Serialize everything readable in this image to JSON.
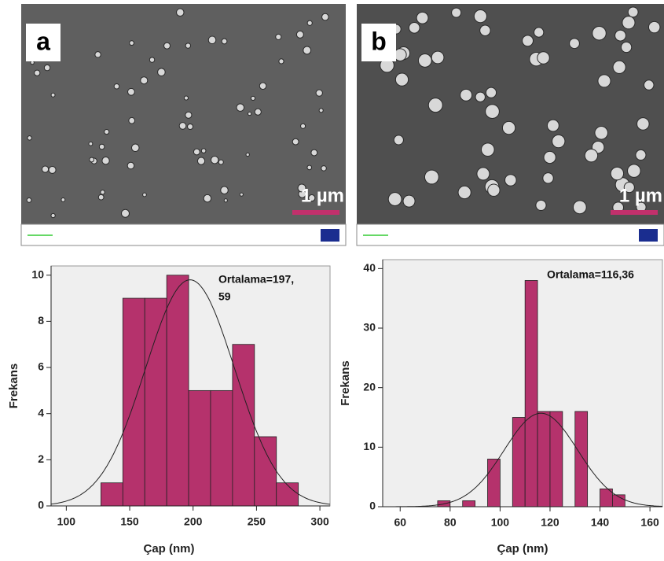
{
  "panels": [
    {
      "label": "a",
      "scale_bar": "1 µm"
    },
    {
      "label": "b",
      "scale_bar": "1 µm"
    }
  ],
  "chart_data": [
    {
      "type": "histogram",
      "bins": [
        127.3,
        144.6,
        161.9,
        179.2,
        196.5,
        213.8,
        231.1,
        248.4,
        265.7,
        283.0
      ],
      "values": [
        1,
        9,
        9,
        10,
        5,
        5,
        7,
        3,
        1
      ],
      "color": "#b5326c",
      "xlim": [
        88,
        308
      ],
      "xticks": [
        100,
        150,
        200,
        250,
        300
      ],
      "ylim": [
        0,
        10.4
      ],
      "yticks": [
        0,
        2,
        4,
        6,
        8,
        10
      ],
      "x_label": "Çap (nm)",
      "y_label": "Frekans",
      "annotation": [
        "Ortalama=197,",
        "59"
      ],
      "fit": {
        "mean": 197.59,
        "sd": 35.2,
        "peak": 9.8
      }
    },
    {
      "type": "histogram",
      "bins": [
        75,
        80,
        85,
        90,
        95,
        100,
        105,
        110,
        115,
        120,
        125,
        130,
        135,
        140,
        145,
        150
      ],
      "values": [
        1,
        0,
        1,
        0,
        8,
        0,
        15,
        38,
        16,
        16,
        0,
        16,
        0,
        3,
        2
      ],
      "color": "#b5326c",
      "xlim": [
        53,
        165
      ],
      "xticks": [
        60,
        80,
        100,
        120,
        140,
        160
      ],
      "ylim": [
        0,
        41.5
      ],
      "yticks": [
        0,
        10,
        20,
        30,
        40
      ],
      "x_label": "Çap (nm)",
      "y_label": "Frekans",
      "annotation": [
        "Ortalama=116,36"
      ],
      "fit": {
        "mean": 116.36,
        "sd": 14.7,
        "peak": 15.7
      }
    }
  ]
}
